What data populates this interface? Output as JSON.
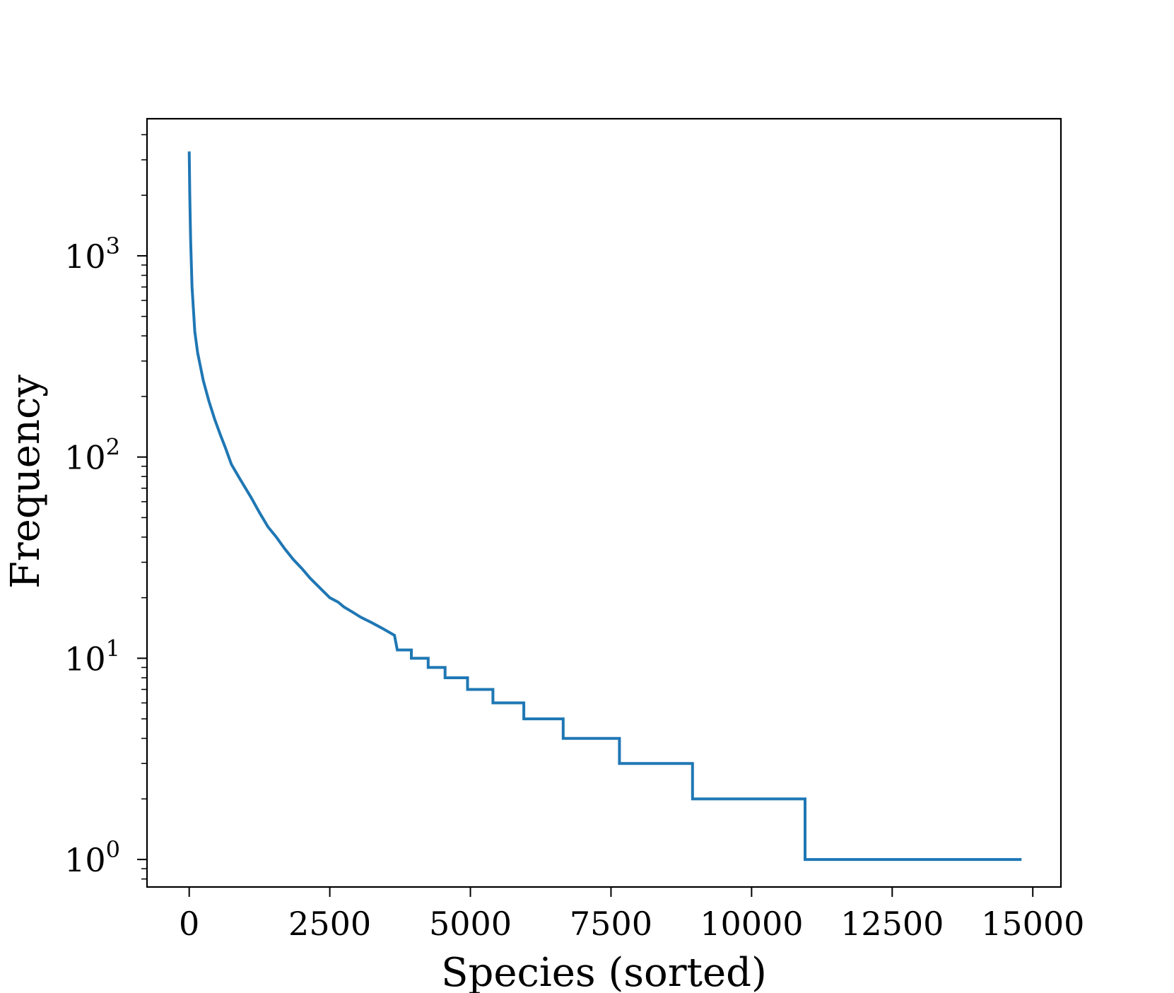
{
  "chart_data": {
    "type": "line",
    "title": "",
    "xlabel": "Species (sorted)",
    "ylabel": "Frequency",
    "yscale": "log",
    "xlim": [
      -750,
      15500
    ],
    "ylim": [
      0.73,
      4800
    ],
    "grid": false,
    "line_color": "#1f77b4",
    "xticks": [
      {
        "value": 0,
        "label": "0"
      },
      {
        "value": 2500,
        "label": "2500"
      },
      {
        "value": 5000,
        "label": "5000"
      },
      {
        "value": 7500,
        "label": "7500"
      },
      {
        "value": 10000,
        "label": "10000"
      },
      {
        "value": 12500,
        "label": "12500"
      },
      {
        "value": 15000,
        "label": "15000"
      }
    ],
    "yticks": [
      {
        "value": 1,
        "base": "10",
        "exp": "0"
      },
      {
        "value": 10,
        "base": "10",
        "exp": "1"
      },
      {
        "value": 100,
        "base": "10",
        "exp": "2"
      },
      {
        "value": 1000,
        "base": "10",
        "exp": "3"
      }
    ],
    "series": [
      {
        "points": [
          [
            0,
            3300
          ],
          [
            10,
            2000
          ],
          [
            25,
            1200
          ],
          [
            50,
            700
          ],
          [
            100,
            420
          ],
          [
            150,
            330
          ],
          [
            250,
            240
          ],
          [
            350,
            190
          ],
          [
            450,
            155
          ],
          [
            550,
            130
          ],
          [
            650,
            110
          ],
          [
            750,
            92
          ],
          [
            900,
            78
          ],
          [
            1100,
            63
          ],
          [
            1250,
            53
          ],
          [
            1400,
            45
          ],
          [
            1550,
            40
          ],
          [
            1700,
            35
          ],
          [
            1850,
            31
          ],
          [
            2000,
            28
          ],
          [
            2150,
            25
          ],
          [
            2350,
            22
          ],
          [
            2500,
            20
          ],
          [
            2650,
            19
          ],
          [
            2750,
            18
          ],
          [
            2900,
            17
          ],
          [
            3050,
            16
          ],
          [
            3250,
            15
          ],
          [
            3450,
            14
          ],
          [
            3650,
            13
          ],
          [
            3900,
            12
          ],
          [
            4150,
            11
          ],
          [
            4500,
            10
          ],
          [
            4900,
            9
          ],
          [
            5400,
            8
          ],
          [
            6000,
            7
          ],
          [
            6700,
            6
          ],
          [
            7650,
            5
          ],
          [
            8950,
            4
          ],
          [
            10950,
            3
          ],
          [
            14800,
            2
          ]
        ],
        "steps": [
          {
            "x_start": 3700,
            "x_end": 3950,
            "value": 11
          },
          {
            "x_start": 3950,
            "x_end": 4250,
            "value": 10
          },
          {
            "x_start": 4250,
            "x_end": 4550,
            "value": 9
          },
          {
            "x_start": 4550,
            "x_end": 4950,
            "value": 8
          },
          {
            "x_start": 4950,
            "x_end": 5400,
            "value": 7
          },
          {
            "x_start": 5400,
            "x_end": 5950,
            "value": 6
          },
          {
            "x_start": 5950,
            "x_end": 6650,
            "value": 5
          },
          {
            "x_start": 6650,
            "x_end": 7650,
            "value": 4
          },
          {
            "x_start": 7650,
            "x_end": 8950,
            "value": 3
          },
          {
            "x_start": 8950,
            "x_end": 10950,
            "value": 2
          },
          {
            "x_start": 10950,
            "x_end": 14800,
            "value": 1
          }
        ]
      }
    ]
  }
}
